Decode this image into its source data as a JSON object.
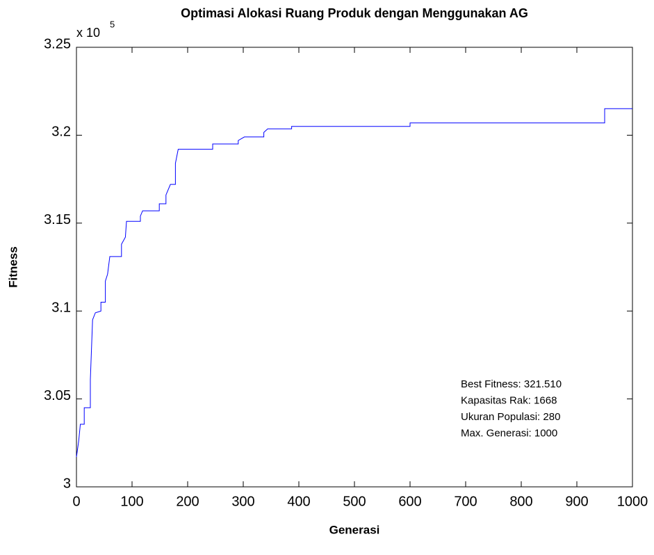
{
  "chart_data": {
    "type": "line",
    "title": "Optimasi Alokasi Ruang Produk dengan Menggunakan AG",
    "x_label": "Generasi",
    "y_label": "Fitness",
    "y_multiplier": {
      "base": "x 10",
      "exponent": "5"
    },
    "x": [
      0,
      4,
      7,
      14,
      14,
      25,
      25,
      29,
      34,
      44,
      44,
      52,
      52,
      56,
      60,
      81,
      81,
      88,
      90,
      115,
      115,
      119,
      149,
      149,
      161,
      161,
      169,
      178,
      178,
      183,
      245,
      245,
      291,
      291,
      302,
      337,
      337,
      344,
      387,
      387,
      600,
      600,
      950,
      950,
      1000
    ],
    "series": [
      {
        "color": "#0000ff",
        "values": [
          3.017,
          3.026,
          3.0356,
          3.0356,
          3.045,
          3.045,
          3.061,
          3.095,
          3.099,
          3.1,
          3.105,
          3.105,
          3.117,
          3.121,
          3.131,
          3.131,
          3.138,
          3.142,
          3.151,
          3.151,
          3.154,
          3.157,
          3.157,
          3.161,
          3.161,
          3.166,
          3.172,
          3.172,
          3.184,
          3.192,
          3.192,
          3.195,
          3.195,
          3.197,
          3.199,
          3.199,
          3.2016,
          3.2036,
          3.2036,
          3.205,
          3.205,
          3.207,
          3.207,
          3.2151,
          3.2151
        ]
      }
    ],
    "xlim": [
      0,
      1000
    ],
    "xticks": [
      0,
      100,
      200,
      300,
      400,
      500,
      600,
      700,
      800,
      900,
      1000
    ],
    "ylim": [
      3,
      3.25
    ],
    "yticks": [
      3,
      3.05,
      3.1,
      3.15,
      3.2,
      3.25
    ],
    "annotations": [
      "Best Fitness: 321.510",
      "Kapasitas Rak: 1668",
      "Ukuran Populasi: 280",
      "Max. Generasi: 1000"
    ]
  }
}
